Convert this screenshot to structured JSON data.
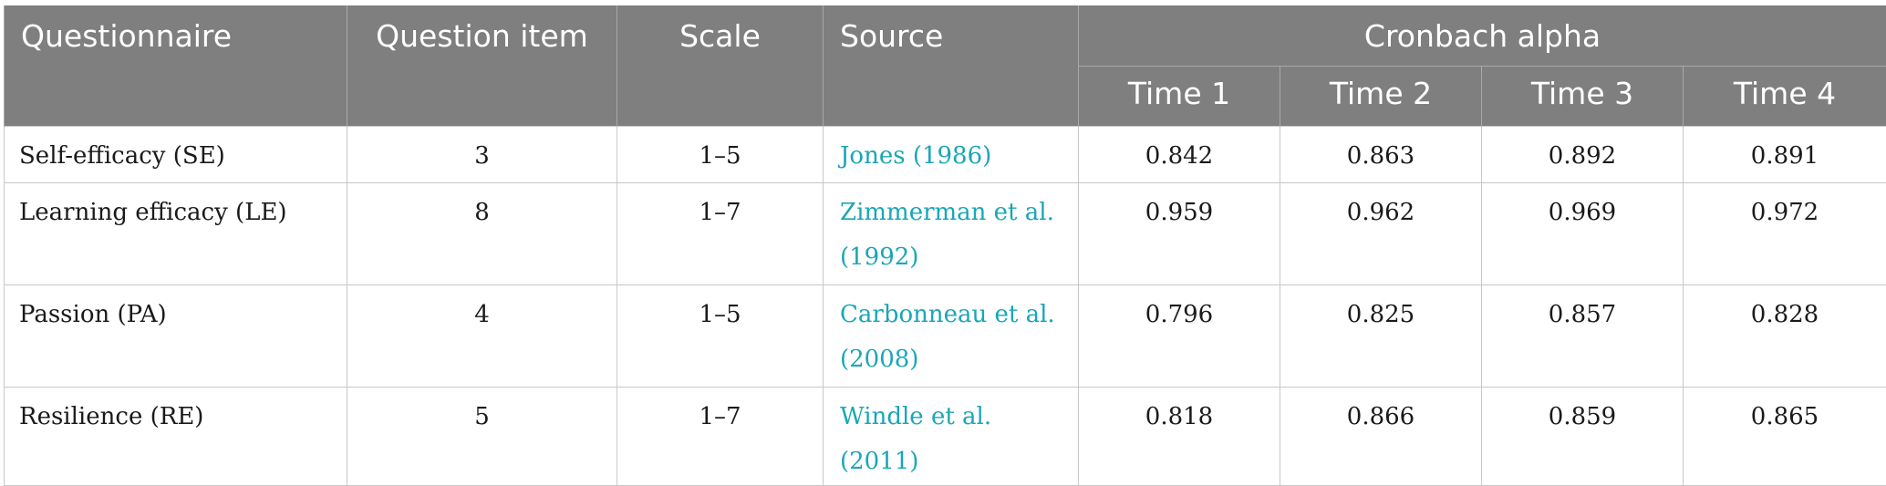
{
  "header": {
    "questionnaire": "Questionnaire",
    "question_item": "Question item",
    "scale": "Scale",
    "source": "Source",
    "cronbach_alpha": "Cronbach alpha",
    "times": [
      "Time 1",
      "Time 2",
      "Time 3",
      "Time 4"
    ]
  },
  "rows": [
    {
      "questionnaire": "Self-efficacy (SE)",
      "items": "3",
      "scale": "1–5",
      "source": "Jones (1986)",
      "alphas": [
        "0.842",
        "0.863",
        "0.892",
        "0.891"
      ]
    },
    {
      "questionnaire": "Learning efficacy (LE)",
      "items": "8",
      "scale": "1–7",
      "source": "Zimmerman et al. (1992)",
      "alphas": [
        "0.959",
        "0.962",
        "0.969",
        "0.972"
      ]
    },
    {
      "questionnaire": "Passion (PA)",
      "items": "4",
      "scale": "1–5",
      "source": "Carbonneau et al. (2008)",
      "alphas": [
        "0.796",
        "0.825",
        "0.857",
        "0.828"
      ]
    },
    {
      "questionnaire": "Resilience (RE)",
      "items": "5",
      "scale": "1–7",
      "source": "Windle et al. (2011)",
      "alphas": [
        "0.818",
        "0.866",
        "0.859",
        "0.865"
      ]
    }
  ],
  "colors": {
    "header_bg": "#7f7f7f",
    "header_text": "#ffffff",
    "link": "#1aa6b7",
    "grid": "#c8c8c8"
  }
}
